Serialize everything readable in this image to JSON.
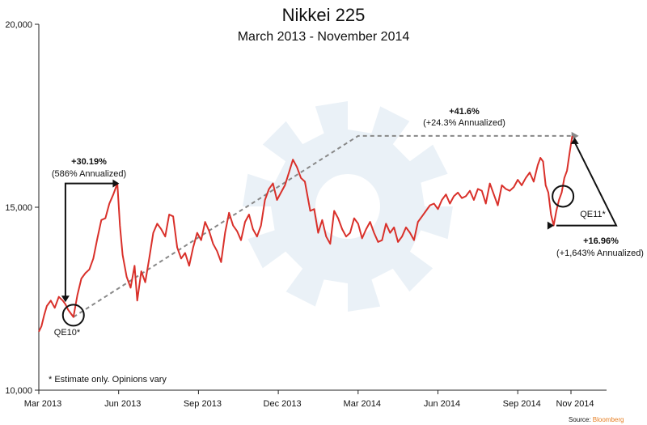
{
  "colors": {
    "line": "#d9302a",
    "axis": "#222222",
    "dashed": "#888888",
    "arrow": "#111111",
    "watermark": "#eaf1f7",
    "source_brand": "#e67e22"
  },
  "chart_data": {
    "type": "line",
    "title": "Nikkei 225",
    "subtitle": "March 2013 - November 2014",
    "ylim": [
      10000,
      20000
    ],
    "y_ticks": [
      {
        "value": 10000,
        "label": "10,000"
      },
      {
        "value": 15000,
        "label": "15,000"
      },
      {
        "value": 20000,
        "label": "20,000"
      }
    ],
    "x_range_months": [
      0,
      20.3
    ],
    "x_ticks": [
      {
        "month": 0,
        "label": "Mar 2013"
      },
      {
        "month": 3,
        "label": "Jun 2013"
      },
      {
        "month": 6,
        "label": "Sep 2013"
      },
      {
        "month": 9,
        "label": "Dec 2013"
      },
      {
        "month": 12,
        "label": "Mar 2014"
      },
      {
        "month": 15,
        "label": "Jun 2014"
      },
      {
        "month": 18,
        "label": "Sep 2014"
      },
      {
        "month": 20,
        "label": "Nov 2014"
      }
    ],
    "series": [
      {
        "name": "Nikkei 225",
        "points": [
          [
            0.0,
            11600
          ],
          [
            0.1,
            11750
          ],
          [
            0.2,
            12050
          ],
          [
            0.3,
            12300
          ],
          [
            0.45,
            12450
          ],
          [
            0.6,
            12250
          ],
          [
            0.75,
            12550
          ],
          [
            0.9,
            12450
          ],
          [
            1.0,
            12350
          ],
          [
            1.1,
            12200
          ],
          [
            1.2,
            12100
          ],
          [
            1.3,
            12000
          ],
          [
            1.45,
            12600
          ],
          [
            1.6,
            13050
          ],
          [
            1.75,
            13200
          ],
          [
            1.9,
            13300
          ],
          [
            2.05,
            13600
          ],
          [
            2.2,
            14150
          ],
          [
            2.35,
            14650
          ],
          [
            2.5,
            14700
          ],
          [
            2.65,
            15100
          ],
          [
            2.8,
            15350
          ],
          [
            2.95,
            15650
          ],
          [
            3.05,
            14500
          ],
          [
            3.15,
            13700
          ],
          [
            3.3,
            13100
          ],
          [
            3.45,
            12800
          ],
          [
            3.6,
            13400
          ],
          [
            3.7,
            12450
          ],
          [
            3.85,
            13250
          ],
          [
            4.0,
            12950
          ],
          [
            4.15,
            13600
          ],
          [
            4.3,
            14300
          ],
          [
            4.45,
            14550
          ],
          [
            4.6,
            14400
          ],
          [
            4.75,
            14200
          ],
          [
            4.9,
            14800
          ],
          [
            5.05,
            14750
          ],
          [
            5.2,
            13900
          ],
          [
            5.35,
            13600
          ],
          [
            5.5,
            13750
          ],
          [
            5.65,
            13400
          ],
          [
            5.8,
            13900
          ],
          [
            5.95,
            14300
          ],
          [
            6.1,
            14100
          ],
          [
            6.25,
            14600
          ],
          [
            6.4,
            14350
          ],
          [
            6.55,
            14000
          ],
          [
            6.7,
            13800
          ],
          [
            6.85,
            13500
          ],
          [
            7.0,
            14300
          ],
          [
            7.15,
            14850
          ],
          [
            7.3,
            14500
          ],
          [
            7.45,
            14350
          ],
          [
            7.6,
            14100
          ],
          [
            7.75,
            14600
          ],
          [
            7.9,
            14800
          ],
          [
            8.05,
            14400
          ],
          [
            8.2,
            14200
          ],
          [
            8.35,
            14500
          ],
          [
            8.5,
            15200
          ],
          [
            8.65,
            15500
          ],
          [
            8.8,
            15650
          ],
          [
            8.95,
            15200
          ],
          [
            9.1,
            15400
          ],
          [
            9.25,
            15600
          ],
          [
            9.4,
            15950
          ],
          [
            9.55,
            16300
          ],
          [
            9.7,
            16100
          ],
          [
            9.85,
            15800
          ],
          [
            10.0,
            15700
          ],
          [
            10.1,
            15300
          ],
          [
            10.2,
            14900
          ],
          [
            10.35,
            14950
          ],
          [
            10.5,
            14300
          ],
          [
            10.65,
            14650
          ],
          [
            10.8,
            14200
          ],
          [
            10.95,
            14000
          ],
          [
            11.1,
            14900
          ],
          [
            11.25,
            14700
          ],
          [
            11.4,
            14400
          ],
          [
            11.55,
            14200
          ],
          [
            11.7,
            14300
          ],
          [
            11.85,
            14700
          ],
          [
            12.0,
            14550
          ],
          [
            12.15,
            14150
          ],
          [
            12.3,
            14400
          ],
          [
            12.45,
            14600
          ],
          [
            12.6,
            14300
          ],
          [
            12.75,
            14050
          ],
          [
            12.9,
            14100
          ],
          [
            13.05,
            14550
          ],
          [
            13.2,
            14300
          ],
          [
            13.35,
            14450
          ],
          [
            13.5,
            14050
          ],
          [
            13.65,
            14200
          ],
          [
            13.8,
            14450
          ],
          [
            13.95,
            14300
          ],
          [
            14.1,
            14100
          ],
          [
            14.25,
            14600
          ],
          [
            14.4,
            14750
          ],
          [
            14.55,
            14900
          ],
          [
            14.7,
            15050
          ],
          [
            14.85,
            15100
          ],
          [
            15.0,
            14950
          ],
          [
            15.15,
            15200
          ],
          [
            15.3,
            15350
          ],
          [
            15.45,
            15100
          ],
          [
            15.6,
            15300
          ],
          [
            15.75,
            15400
          ],
          [
            15.9,
            15250
          ],
          [
            16.05,
            15300
          ],
          [
            16.2,
            15450
          ],
          [
            16.35,
            15200
          ],
          [
            16.5,
            15500
          ],
          [
            16.65,
            15450
          ],
          [
            16.8,
            15100
          ],
          [
            16.95,
            15650
          ],
          [
            17.1,
            15350
          ],
          [
            17.25,
            15050
          ],
          [
            17.4,
            15600
          ],
          [
            17.55,
            15500
          ],
          [
            17.7,
            15450
          ],
          [
            17.85,
            15550
          ],
          [
            18.0,
            15750
          ],
          [
            18.15,
            15600
          ],
          [
            18.3,
            15800
          ],
          [
            18.45,
            15950
          ],
          [
            18.6,
            15700
          ],
          [
            18.75,
            16150
          ],
          [
            18.85,
            16350
          ],
          [
            18.95,
            16250
          ],
          [
            19.05,
            15600
          ],
          [
            19.15,
            15400
          ],
          [
            19.25,
            14800
          ],
          [
            19.35,
            14500
          ],
          [
            19.45,
            14900
          ],
          [
            19.55,
            15200
          ],
          [
            19.65,
            15400
          ],
          [
            19.75,
            15800
          ],
          [
            19.85,
            16000
          ],
          [
            19.95,
            16500
          ],
          [
            20.05,
            16950
          ]
        ]
      }
    ],
    "guide_line": {
      "style": "dashed",
      "points": [
        [
          1.3,
          12000
        ],
        [
          12.0,
          16950
        ],
        [
          20.05,
          16950
        ]
      ]
    },
    "circles": [
      {
        "month": 1.3,
        "value": 12050,
        "label": "QE10*"
      },
      {
        "month": 19.7,
        "value": 15300,
        "label": "QE11*"
      }
    ],
    "annotations": [
      {
        "id": "qe10",
        "bold": "+30.19%",
        "text": "(586% Annualized)"
      },
      {
        "id": "overall",
        "bold": "+41.6%",
        "text": "(+24.3% Annualized)"
      },
      {
        "id": "qe11",
        "bold": "+16.96%",
        "text": "(+1,643% Annualized)"
      }
    ],
    "footnote": "* Estimate only. Opinions vary",
    "source_prefix": "Source: ",
    "source_name": "Bloomberg"
  }
}
